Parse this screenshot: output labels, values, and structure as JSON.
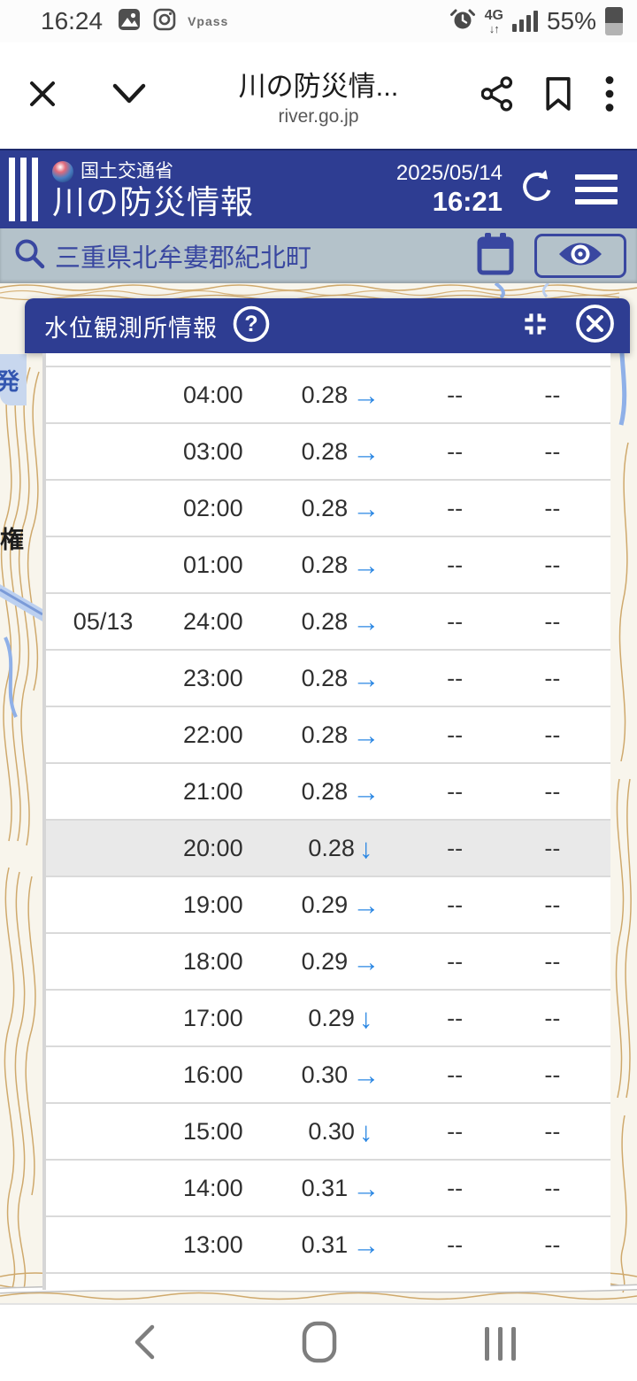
{
  "colors": {
    "header_blue": "#2e3d92",
    "search_bg": "#b4c2ca",
    "indigo_icon": "#3947a0",
    "trend_arrow_blue": "#2b87e3",
    "row_highlight": "#e9e9e9",
    "map_contour_tan": "#cfa96c",
    "map_river_blue": "#8fb0e8"
  },
  "status_bar": {
    "time": "16:24",
    "carrier_label": "Vpass",
    "network": "4G",
    "network_arrows": "↓↑",
    "battery_pct": "55%"
  },
  "browser": {
    "title": "川の防災情...",
    "domain": "river.go.jp"
  },
  "app_header": {
    "ministry": "国土交通省",
    "app_name": "川の防災情報",
    "date": "2025/05/14",
    "time": "16:21"
  },
  "search_bar": {
    "query": "三重県北牟婁郡紀北町"
  },
  "side_tab": {
    "label": "発"
  },
  "map": {
    "place_label": "権"
  },
  "modal": {
    "title": "水位観測所情報"
  },
  "table": {
    "trend_glyphs": {
      "right": "→",
      "down": "↓"
    },
    "rows": [
      {
        "date": "",
        "time": "04:00",
        "value": "0.28",
        "trend": "right",
        "col4": "--",
        "col5": "--",
        "highlight": false
      },
      {
        "date": "",
        "time": "03:00",
        "value": "0.28",
        "trend": "right",
        "col4": "--",
        "col5": "--",
        "highlight": false
      },
      {
        "date": "",
        "time": "02:00",
        "value": "0.28",
        "trend": "right",
        "col4": "--",
        "col5": "--",
        "highlight": false
      },
      {
        "date": "",
        "time": "01:00",
        "value": "0.28",
        "trend": "right",
        "col4": "--",
        "col5": "--",
        "highlight": false
      },
      {
        "date": "05/13",
        "time": "24:00",
        "value": "0.28",
        "trend": "right",
        "col4": "--",
        "col5": "--",
        "highlight": false
      },
      {
        "date": "",
        "time": "23:00",
        "value": "0.28",
        "trend": "right",
        "col4": "--",
        "col5": "--",
        "highlight": false
      },
      {
        "date": "",
        "time": "22:00",
        "value": "0.28",
        "trend": "right",
        "col4": "--",
        "col5": "--",
        "highlight": false
      },
      {
        "date": "",
        "time": "21:00",
        "value": "0.28",
        "trend": "right",
        "col4": "--",
        "col5": "--",
        "highlight": false
      },
      {
        "date": "",
        "time": "20:00",
        "value": "0.28",
        "trend": "down",
        "col4": "--",
        "col5": "--",
        "highlight": true
      },
      {
        "date": "",
        "time": "19:00",
        "value": "0.29",
        "trend": "right",
        "col4": "--",
        "col5": "--",
        "highlight": false
      },
      {
        "date": "",
        "time": "18:00",
        "value": "0.29",
        "trend": "right",
        "col4": "--",
        "col5": "--",
        "highlight": false
      },
      {
        "date": "",
        "time": "17:00",
        "value": "0.29",
        "trend": "down",
        "col4": "--",
        "col5": "--",
        "highlight": false
      },
      {
        "date": "",
        "time": "16:00",
        "value": "0.30",
        "trend": "right",
        "col4": "--",
        "col5": "--",
        "highlight": false
      },
      {
        "date": "",
        "time": "15:00",
        "value": "0.30",
        "trend": "down",
        "col4": "--",
        "col5": "--",
        "highlight": false
      },
      {
        "date": "",
        "time": "14:00",
        "value": "0.31",
        "trend": "right",
        "col4": "--",
        "col5": "--",
        "highlight": false
      },
      {
        "date": "",
        "time": "13:00",
        "value": "0.31",
        "trend": "right",
        "col4": "--",
        "col5": "--",
        "highlight": false
      }
    ]
  }
}
